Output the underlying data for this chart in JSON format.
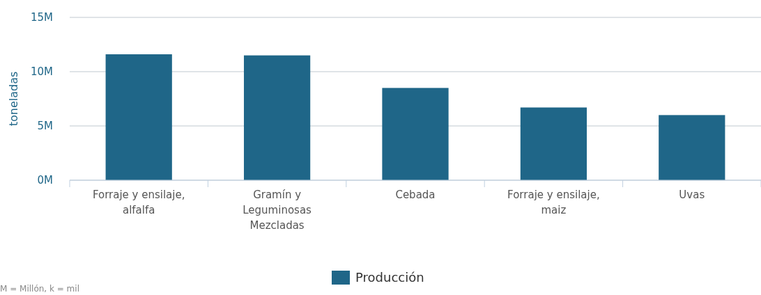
{
  "chart_data": {
    "type": "bar",
    "ylabel": "toneladas",
    "categories": [
      "Forraje y ensilaje, alfalfa",
      "Gramín y Leguminosas Mezcladas",
      "Cebada",
      "Forraje y ensilaje, maiz",
      "Uvas"
    ],
    "series": [
      {
        "name": "Producción",
        "color": "#1f6688",
        "values": [
          11.6,
          11.5,
          8.5,
          6.7,
          6.0
        ]
      }
    ],
    "ylim": [
      0,
      15
    ],
    "yticks": [
      {
        "value": 0,
        "label": "0M"
      },
      {
        "value": 5,
        "label": "5M"
      },
      {
        "value": 10,
        "label": "10M"
      },
      {
        "value": 15,
        "label": "15M"
      }
    ],
    "grid": "y",
    "legend": "bottom",
    "annotations": [
      "M = Millón, k = mil"
    ]
  }
}
